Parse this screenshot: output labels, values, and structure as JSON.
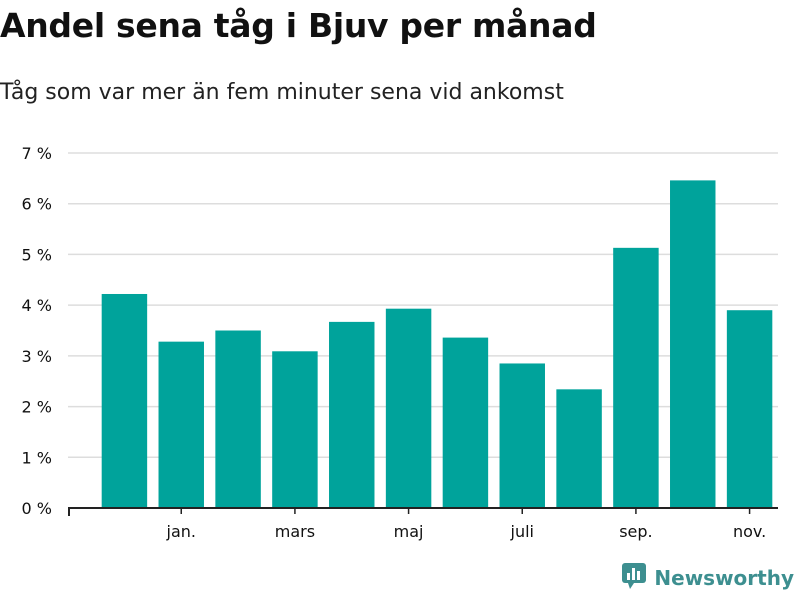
{
  "colors": {
    "bar": "#00a39b",
    "grid": "#dddddd",
    "axis": "#222222",
    "text": "#111111",
    "brand": "#3d8f90"
  },
  "brand": {
    "name": "Newsworthy",
    "icon": "newsworthy-logo-icon"
  },
  "chart_data": {
    "type": "bar",
    "title": "Andel sena tåg i Bjuv per månad",
    "subtitle": "Tåg som var mer än fem minuter sena vid ankomst",
    "xlabel": "",
    "ylabel": "",
    "ylim": [
      0,
      7
    ],
    "y_ticks": [
      0,
      1,
      2,
      3,
      4,
      5,
      6,
      7
    ],
    "y_tick_labels": [
      "0 %",
      "1 %",
      "2 %",
      "3 %",
      "4 %",
      "5 %",
      "6 %",
      "7 %"
    ],
    "x_tick_labels": [
      {
        "index": 1,
        "label": "jan."
      },
      {
        "index": 3,
        "label": "mars"
      },
      {
        "index": 5,
        "label": "maj"
      },
      {
        "index": 7,
        "label": "juli"
      },
      {
        "index": 9,
        "label": "sep."
      },
      {
        "index": 11,
        "label": "nov."
      }
    ],
    "values": [
      4.22,
      3.28,
      3.5,
      3.09,
      3.67,
      3.93,
      3.36,
      2.85,
      2.34,
      5.13,
      6.46,
      3.9
    ],
    "grid": true,
    "legend": "none"
  }
}
